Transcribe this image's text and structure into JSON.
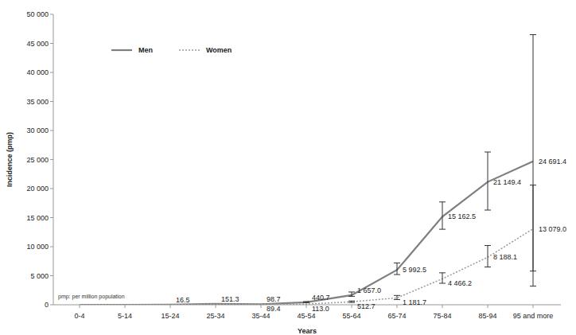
{
  "chart_data": {
    "type": "line",
    "x_label": "Years",
    "y_label": "Incidence (pmp)",
    "annotation": "pmp: per million population",
    "categories": [
      "0-4",
      "5-14",
      "15-24",
      "25-34",
      "35-44",
      "45-54",
      "55-64",
      "65-74",
      "75-84",
      "85-94",
      "95 and more"
    ],
    "ylim": [
      0,
      50000
    ],
    "yticks": [
      0,
      {
        "value": 5000,
        "label": "5 000"
      },
      {
        "value": 10000,
        "label": "10 000"
      },
      {
        "value": 15000,
        "label": "15 000"
      },
      {
        "value": 20000,
        "label": "20 000"
      },
      {
        "value": 25000,
        "label": "25 000"
      },
      {
        "value": 30000,
        "label": "30 000"
      },
      {
        "value": 35000,
        "label": "35 000"
      },
      {
        "value": 40000,
        "label": "40 000"
      },
      {
        "value": 45000,
        "label": "45 000"
      },
      {
        "value": 50000,
        "label": "50 000"
      }
    ],
    "grid": false,
    "legend": "upper left",
    "data_labels": true,
    "series": [
      {
        "name": "Men",
        "color": "#7f7f7f",
        "line_style": "solid",
        "values": [
          0,
          0,
          16.5,
          151.3,
          98.7,
          440.7,
          1657.0,
          5992.5,
          15162.5,
          21149.4,
          24691.4
        ],
        "value_labels": [
          null,
          null,
          "16.5",
          "151.3",
          "98.7",
          "440.7",
          "1 657.0",
          "5 992.5",
          "15 162.5",
          "21 149.4",
          "24 691.4"
        ],
        "ci_low": [
          null,
          null,
          null,
          null,
          null,
          350,
          1450,
          5200,
          13000,
          16300,
          5800
        ],
        "ci_high": [
          null,
          null,
          null,
          null,
          null,
          550,
          2200,
          7200,
          17700,
          26300,
          46500
        ]
      },
      {
        "name": "Women",
        "color": "#9a9a9a",
        "line_style": "dotted",
        "values": [
          0,
          0,
          10,
          100,
          89.4,
          113.0,
          512.7,
          1181.7,
          4466.2,
          8188.1,
          13079.0
        ],
        "value_labels": [
          null,
          null,
          null,
          null,
          "89.4",
          "113.0",
          "512.7",
          "1 181.7",
          "4 466.2",
          "8 188.1",
          "13 079.0"
        ],
        "ci_low": [
          null,
          null,
          null,
          null,
          null,
          null,
          400,
          900,
          3700,
          6500,
          3200
        ],
        "ci_high": [
          null,
          null,
          null,
          null,
          null,
          null,
          650,
          1600,
          5500,
          10200,
          20600
        ]
      }
    ]
  }
}
